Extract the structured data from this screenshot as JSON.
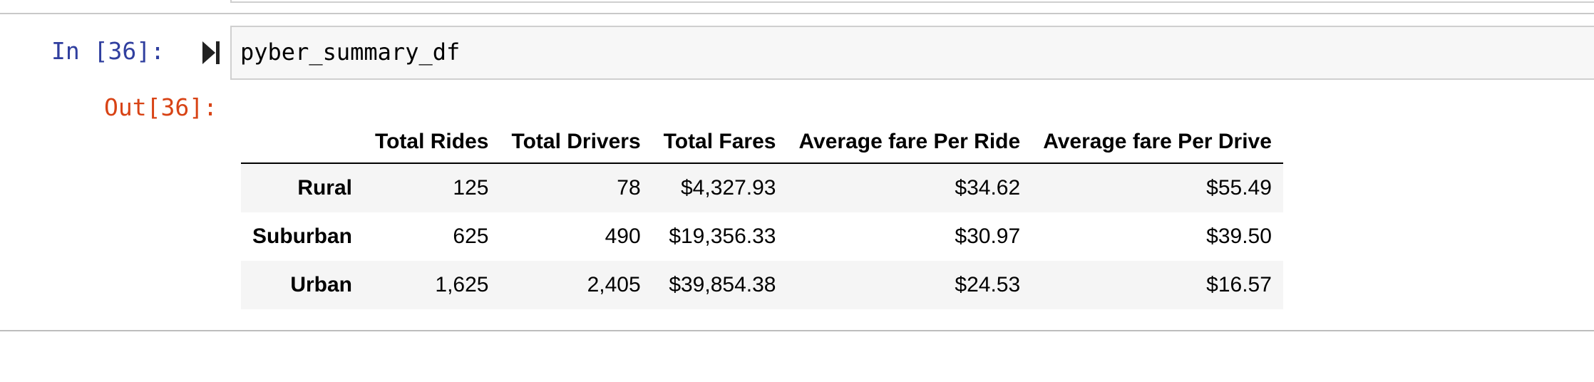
{
  "notebook": {
    "input_prompt": "In [36]:",
    "code": "pyber_summary_df",
    "output_prompt": "Out[36]:"
  },
  "dataframe": {
    "columns": [
      "",
      "Total Rides",
      "Total Drivers",
      "Total Fares",
      "Average fare Per Ride",
      "Average fare Per Drive"
    ],
    "rows": [
      {
        "index": "Rural",
        "values": [
          "125",
          "78",
          "$4,327.93",
          "$34.62",
          "$55.49"
        ]
      },
      {
        "index": "Suburban",
        "values": [
          "625",
          "490",
          "$19,356.33",
          "$30.97",
          "$39.50"
        ]
      },
      {
        "index": "Urban",
        "values": [
          "1,625",
          "2,405",
          "$39,854.38",
          "$24.53",
          "$16.57"
        ]
      }
    ]
  },
  "icons": {
    "run": "run-cell-icon"
  },
  "colors": {
    "input_prompt": "#303f9f",
    "output_prompt": "#d84315",
    "code_bg": "#f7f7f7"
  }
}
